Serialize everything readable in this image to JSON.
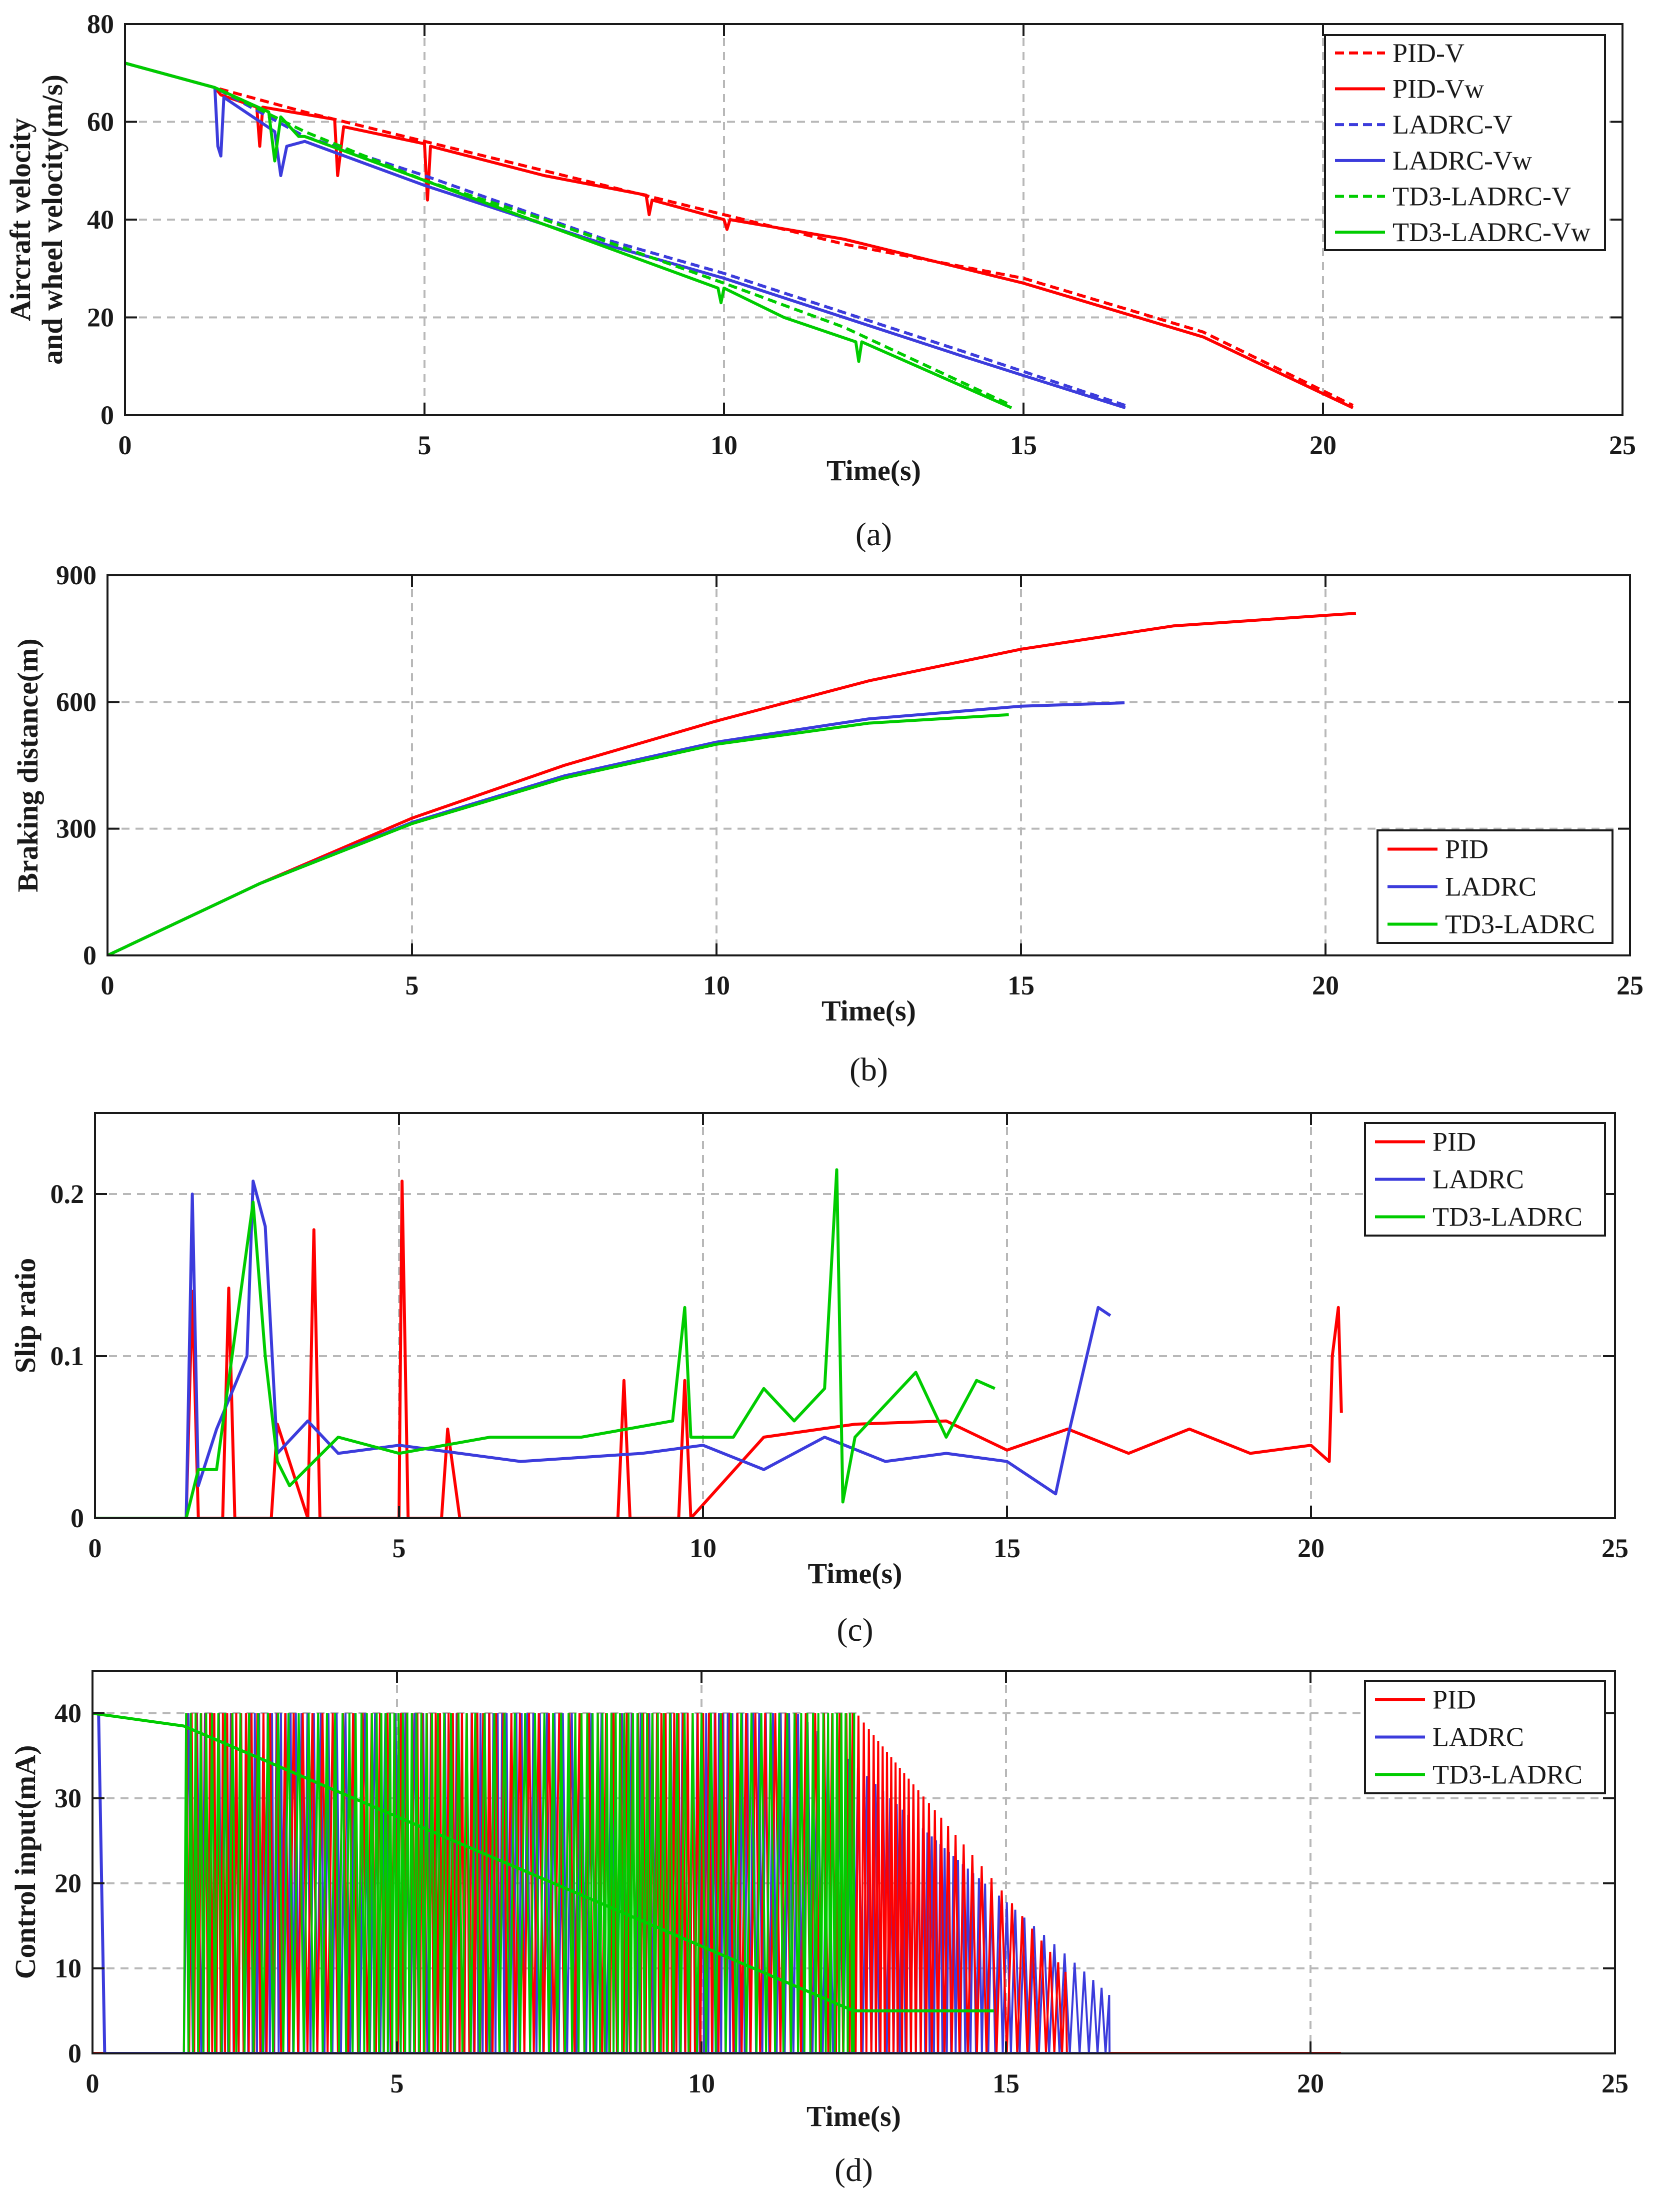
{
  "chart_data": [
    {
      "type": "line",
      "caption": "(a)",
      "xlabel": "Time(s)",
      "ylabel_lines": [
        "Aircraft velocity",
        "and wheel velocity(m/s)"
      ],
      "xlim": [
        0,
        25
      ],
      "ylim": [
        0,
        80
      ],
      "xticks": [
        0,
        5,
        10,
        15,
        20,
        25
      ],
      "yticks": [
        0,
        20,
        40,
        60,
        80
      ],
      "grid": true,
      "legend_position": "top-right",
      "series": [
        {
          "name": "PID-V",
          "color": "#ff0000",
          "dash": true,
          "x": [
            0,
            1.5,
            3,
            5,
            8,
            10,
            12,
            15,
            18,
            20.5
          ],
          "y": [
            72,
            67,
            62,
            56,
            47,
            41,
            35,
            28,
            17,
            2
          ]
        },
        {
          "name": "PID-Vw",
          "color": "#ff0000",
          "dash": false,
          "x": [
            0,
            1.5,
            1.6,
            2.2,
            2.25,
            2.3,
            3.5,
            3.55,
            3.65,
            5,
            5.05,
            5.1,
            7,
            8.7,
            8.75,
            8.8,
            10,
            10.05,
            10.1,
            12,
            13,
            15,
            18,
            20.5
          ],
          "y": [
            72,
            67,
            65.5,
            63,
            55,
            63,
            60.5,
            49,
            59,
            55.5,
            44,
            55,
            49,
            45,
            41,
            44,
            40,
            38,
            40,
            36,
            33,
            27,
            16,
            1.5
          ]
        },
        {
          "name": "LADRC-V",
          "color": "#3c3cdc",
          "dash": true,
          "x": [
            0,
            1.5,
            3,
            5,
            8,
            10,
            12,
            14,
            16.7
          ],
          "y": [
            72,
            67,
            57,
            49,
            36,
            29,
            21,
            13,
            2
          ]
        },
        {
          "name": "LADRC-Vw",
          "color": "#3c3cdc",
          "dash": false,
          "x": [
            0,
            1.5,
            1.55,
            1.6,
            1.65,
            2.5,
            2.6,
            2.7,
            3,
            5,
            8,
            10,
            12,
            14,
            16.7
          ],
          "y": [
            72,
            67,
            55,
            53,
            65,
            58,
            49,
            55,
            56,
            47,
            35,
            28,
            20,
            12,
            1.5
          ]
        },
        {
          "name": "TD3-LADRC-V",
          "color": "#00cc00",
          "dash": true,
          "x": [
            0,
            1.5,
            3,
            5,
            7,
            10,
            12,
            14.8
          ],
          "y": [
            72,
            67,
            58,
            48,
            40,
            27,
            18,
            2
          ]
        },
        {
          "name": "TD3-LADRC-Vw",
          "color": "#00cc00",
          "dash": false,
          "x": [
            0,
            1.5,
            2.4,
            2.5,
            2.6,
            2.9,
            3,
            5,
            7,
            9.9,
            9.95,
            10,
            11,
            12.2,
            12.25,
            12.3,
            14.8
          ],
          "y": [
            72,
            67,
            62,
            52,
            61,
            57,
            57,
            48,
            39,
            26,
            23,
            26,
            20,
            15,
            11,
            15,
            1.5
          ]
        }
      ]
    },
    {
      "type": "line",
      "caption": "(b)",
      "xlabel": "Time(s)",
      "ylabel": "Braking distance(m)",
      "xlim": [
        0,
        25
      ],
      "ylim": [
        0,
        900
      ],
      "xticks": [
        0,
        5,
        10,
        15,
        20,
        25
      ],
      "yticks": [
        0,
        300,
        600,
        900
      ],
      "grid": true,
      "legend_position": "bottom-right",
      "series": [
        {
          "name": "PID",
          "color": "#ff0000",
          "x": [
            0,
            2.5,
            5,
            7.5,
            10,
            12.5,
            15,
            17.5,
            20.5
          ],
          "y": [
            0,
            170,
            325,
            450,
            555,
            650,
            725,
            780,
            810
          ]
        },
        {
          "name": "LADRC",
          "color": "#3c3cdc",
          "x": [
            0,
            2.5,
            5,
            7.5,
            10,
            12.5,
            15,
            16.7
          ],
          "y": [
            0,
            170,
            315,
            425,
            505,
            560,
            590,
            598
          ]
        },
        {
          "name": "TD3-LADRC",
          "color": "#00cc00",
          "x": [
            0,
            2.5,
            5,
            7.5,
            10,
            12.5,
            14.8
          ],
          "y": [
            0,
            170,
            312,
            420,
            500,
            550,
            570
          ]
        }
      ]
    },
    {
      "type": "line",
      "caption": "(c)",
      "xlabel": "Time(s)",
      "ylabel": "Slip ratio",
      "xlim": [
        0,
        25
      ],
      "ylim": [
        0,
        0.25
      ],
      "xticks": [
        0,
        5,
        10,
        15,
        20,
        25
      ],
      "yticks": [
        0,
        0.1,
        0.2
      ],
      "ytick_labels": [
        "0",
        "0.1",
        "0.2"
      ],
      "grid": true,
      "legend_position": "top-right",
      "series": [
        {
          "name": "PID",
          "color": "#ff0000",
          "x": [
            0,
            1.5,
            1.6,
            1.7,
            2.1,
            2.2,
            2.3,
            2.9,
            3,
            3.5,
            3.6,
            3.7,
            5,
            5.05,
            5.15,
            5.7,
            5.8,
            6,
            8.6,
            8.7,
            8.8,
            9.6,
            9.7,
            9.8,
            11,
            12.5,
            14,
            15,
            16,
            17,
            18,
            19,
            20,
            20.3,
            20.35,
            20.45,
            20.5
          ],
          "y": [
            0,
            0,
            0.14,
            0,
            0,
            0.142,
            0,
            0,
            0.058,
            0,
            0.178,
            0,
            0,
            0.208,
            0,
            0,
            0.055,
            0,
            0,
            0.085,
            0,
            0,
            0.085,
            0,
            0.05,
            0.058,
            0.06,
            0.042,
            0.055,
            0.04,
            0.055,
            0.04,
            0.045,
            0.035,
            0.1,
            0.13,
            0.065
          ]
        },
        {
          "name": "LADRC",
          "color": "#3c3cdc",
          "x": [
            0,
            1.5,
            1.6,
            1.7,
            2,
            2.5,
            2.6,
            2.8,
            3,
            3.5,
            4,
            5,
            7,
            9,
            10,
            11,
            12,
            13,
            14,
            15,
            15.8,
            16,
            16.5,
            16.7
          ],
          "y": [
            0,
            0,
            0.2,
            0.02,
            0.055,
            0.1,
            0.208,
            0.18,
            0.04,
            0.06,
            0.04,
            0.045,
            0.035,
            0.04,
            0.045,
            0.03,
            0.05,
            0.035,
            0.04,
            0.035,
            0.015,
            0.05,
            0.13,
            0.125
          ]
        },
        {
          "name": "TD3-LADRC",
          "color": "#00cc00",
          "x": [
            0,
            1.5,
            1.7,
            2,
            2.4,
            2.6,
            2.8,
            3,
            3.2,
            4,
            5,
            6.5,
            8,
            9.5,
            9.7,
            9.8,
            10.5,
            11,
            11.5,
            12,
            12.2,
            12.3,
            12.5,
            13,
            13.5,
            14,
            14.5,
            14.8
          ],
          "y": [
            0,
            0,
            0.03,
            0.03,
            0.14,
            0.195,
            0.1,
            0.035,
            0.02,
            0.05,
            0.04,
            0.05,
            0.05,
            0.06,
            0.13,
            0.05,
            0.05,
            0.08,
            0.06,
            0.08,
            0.215,
            0.01,
            0.05,
            0.07,
            0.09,
            0.05,
            0.085,
            0.08
          ]
        }
      ]
    },
    {
      "type": "line",
      "caption": "(d)",
      "xlabel": "Time(s)",
      "ylabel": "Control input(mA)",
      "xlim": [
        0,
        25
      ],
      "ylim": [
        0,
        45
      ],
      "xticks": [
        0,
        5,
        10,
        15,
        20,
        25
      ],
      "yticks": [
        0,
        10,
        20,
        30,
        40
      ],
      "grid": true,
      "legend_position": "top-right",
      "oscillation_ranges": [
        {
          "name": "PID",
          "t_start": 1.5,
          "t_end": 16.0,
          "max": 40,
          "decay_start": 12.5,
          "min": 0
        },
        {
          "name": "LADRC",
          "t_start": 1.5,
          "t_end": 16.7,
          "max": 40,
          "decay_start": 11.5,
          "min": 0
        },
        {
          "name": "TD3-LADRC",
          "t_start": 1.5,
          "t_end": 12.5,
          "max": 40,
          "decay_start": 12.5,
          "min": 0
        }
      ],
      "series": [
        {
          "name": "PID",
          "color": "#ff0000",
          "x": [
            0,
            1.5,
            16.0,
            20.5
          ],
          "y": [
            0,
            0,
            0,
            0
          ]
        },
        {
          "name": "LADRC",
          "color": "#3c3cdc",
          "x": [
            0,
            0.1,
            0.2,
            1.5,
            16.7
          ],
          "y": [
            40,
            40,
            0,
            0,
            0
          ]
        },
        {
          "name": "TD3-LADRC",
          "color": "#00cc00",
          "x": [
            0,
            1.5,
            12.5,
            14.8
          ],
          "y": [
            40,
            38.5,
            5,
            5
          ]
        }
      ]
    }
  ]
}
